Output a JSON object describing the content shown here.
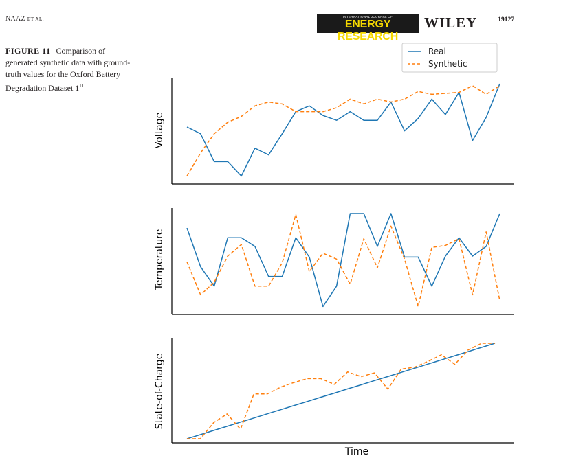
{
  "header": {
    "authors": "NAAZ",
    "etal": "ET AL.",
    "journal_small": "INTERNATIONAL JOURNAL OF",
    "journal_big": "ENERGY RESEARCH",
    "publisher": "WILEY",
    "page": "19127"
  },
  "caption": {
    "label": "FIGURE 11",
    "text": "Comparison of generated synthetic data with ground-truth values for the Oxford Battery Degradation Dataset 1",
    "ref": "11"
  },
  "colors": {
    "real": "#1f77b4",
    "synthetic": "#ff7f0e"
  },
  "legend": {
    "position": "top-right",
    "real": "Real",
    "synthetic": "Synthetic"
  },
  "chart_data": [
    {
      "type": "line",
      "ylabel": "Voltage",
      "xlabel": "",
      "ylim": [
        0,
        1
      ],
      "x": [
        0,
        1,
        2,
        3,
        4,
        5,
        6,
        7,
        8,
        9,
        10,
        11,
        12,
        13,
        14,
        15,
        16,
        17,
        18,
        19,
        20,
        21,
        22,
        23
      ],
      "series": [
        {
          "name": "Real",
          "values": [
            0.55,
            0.48,
            0.19,
            0.19,
            0.04,
            0.33,
            0.26,
            0.48,
            0.71,
            0.77,
            0.67,
            0.62,
            0.71,
            0.62,
            0.62,
            0.81,
            0.51,
            0.64,
            0.84,
            0.68,
            0.91,
            0.41,
            0.65,
            1.0
          ]
        },
        {
          "name": "Synthetic",
          "values": [
            0.04,
            0.28,
            0.48,
            0.6,
            0.66,
            0.77,
            0.81,
            0.79,
            0.71,
            0.71,
            0.71,
            0.75,
            0.84,
            0.79,
            0.84,
            0.81,
            0.84,
            0.92,
            0.89,
            0.9,
            0.91,
            0.98,
            0.89,
            0.98
          ]
        }
      ]
    },
    {
      "type": "line",
      "ylabel": "Temperature",
      "xlabel": "",
      "ylim": [
        0,
        1
      ],
      "x": [
        0,
        1,
        2,
        3,
        4,
        5,
        6,
        7,
        8,
        9,
        10,
        11,
        12,
        13,
        14,
        15,
        16,
        17,
        18,
        19,
        20,
        21,
        22,
        23
      ],
      "series": [
        {
          "name": "Real",
          "values": [
            0.85,
            0.45,
            0.25,
            0.75,
            0.75,
            0.66,
            0.35,
            0.35,
            0.75,
            0.55,
            0.04,
            0.25,
            1.0,
            1.0,
            0.66,
            1.0,
            0.55,
            0.55,
            0.25,
            0.56,
            0.75,
            0.56,
            0.66,
            1.0
          ]
        },
        {
          "name": "Synthetic",
          "values": [
            0.5,
            0.16,
            0.29,
            0.56,
            0.68,
            0.25,
            0.25,
            0.49,
            0.99,
            0.4,
            0.59,
            0.53,
            0.27,
            0.74,
            0.44,
            0.87,
            0.53,
            0.04,
            0.65,
            0.67,
            0.74,
            0.16,
            0.81,
            0.1
          ]
        }
      ]
    },
    {
      "type": "line",
      "ylabel": "State-of-Charge",
      "xlabel": "Time",
      "ylim": [
        0,
        1
      ],
      "x": [
        0,
        1,
        2,
        3,
        4,
        5,
        6,
        7,
        8,
        9,
        10,
        11,
        12,
        13,
        14,
        15,
        16,
        17,
        18,
        19,
        20,
        21,
        22,
        23
      ],
      "series": [
        {
          "name": "Real",
          "values": [
            0.0,
            0.043,
            0.087,
            0.13,
            0.174,
            0.217,
            0.261,
            0.304,
            0.348,
            0.391,
            0.435,
            0.478,
            0.522,
            0.565,
            0.609,
            0.652,
            0.696,
            0.739,
            0.783,
            0.826,
            0.87,
            0.913,
            0.957,
            1.0
          ]
        },
        {
          "name": "Synthetic",
          "values": [
            0.0,
            0.0,
            0.17,
            0.26,
            0.1,
            0.47,
            0.47,
            0.54,
            0.59,
            0.63,
            0.63,
            0.57,
            0.7,
            0.65,
            0.69,
            0.52,
            0.73,
            0.75,
            0.81,
            0.88,
            0.78,
            0.93,
            1.0,
            1.0
          ]
        }
      ]
    }
  ]
}
